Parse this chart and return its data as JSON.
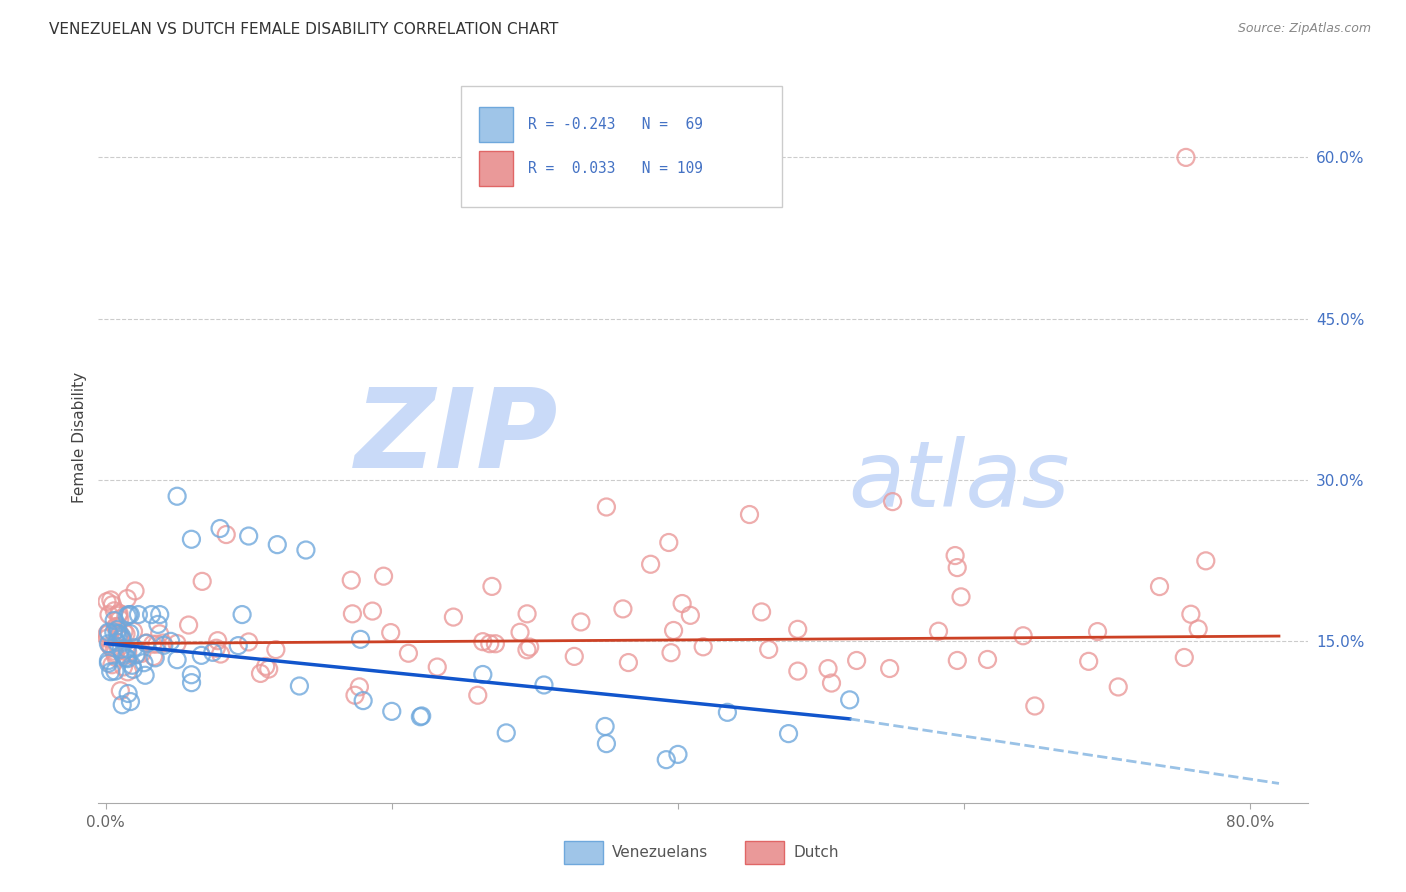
{
  "title": "VENEZUELAN VS DUTCH FEMALE DISABILITY CORRELATION CHART",
  "source_text": "Source: ZipAtlas.com",
  "ylabel": "Female Disability",
  "y_ticks": [
    0.15,
    0.3,
    0.45,
    0.6
  ],
  "y_tick_labels": [
    "15.0%",
    "30.0%",
    "45.0%",
    "60.0%"
  ],
  "x_ticks": [
    0.0,
    0.2,
    0.4,
    0.6,
    0.8
  ],
  "x_tick_labels": [
    "0.0%",
    "",
    "",
    "",
    "80.0%"
  ],
  "ylim": [
    0.0,
    0.68
  ],
  "xlim": [
    -0.005,
    0.84
  ],
  "venezuelan_R": -0.243,
  "venezuelan_N": 69,
  "dutch_R": 0.033,
  "dutch_N": 109,
  "venezuelan_dot_color": "#6fa8dc",
  "dutch_dot_color": "#ea9999",
  "venezuelan_line_color": "#1155cc",
  "dutch_line_color": "#cc4125",
  "venezuelan_legend_fill": "#9fc5e8",
  "venezuelan_legend_edge": "#6fa8dc",
  "dutch_legend_fill": "#ea9999",
  "dutch_legend_edge": "#e06666",
  "watermark_color": "#c9daf8",
  "background_color": "#ffffff",
  "title_color": "#333333",
  "source_color": "#888888",
  "ylabel_color": "#444444",
  "tick_label_color_y": "#4472c4",
  "tick_label_color_x": "#666666",
  "grid_color": "#cccccc",
  "legend_text_color": "#4472c4",
  "bottom_legend_text_color": "#555555",
  "legend_label_venezuelan": "Venezuelans",
  "legend_label_dutch": "Dutch",
  "ven_line_x_start": 0.0,
  "ven_line_x_solid_end": 0.52,
  "ven_line_x_dash_end": 0.82,
  "ven_line_y_start": 0.148,
  "ven_line_y_solid_end": 0.078,
  "ven_line_y_dash_end": 0.018,
  "dutch_line_x_start": 0.0,
  "dutch_line_x_end": 0.82,
  "dutch_line_y_start": 0.148,
  "dutch_line_y_end": 0.155
}
